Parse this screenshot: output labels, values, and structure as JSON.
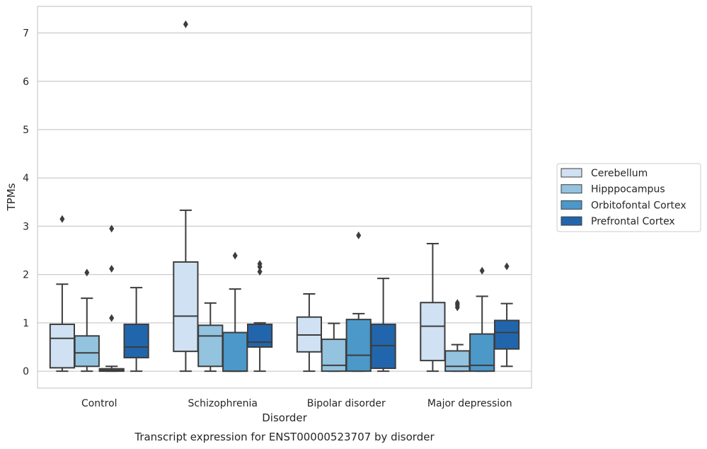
{
  "chart_data": {
    "type": "boxplot",
    "title": "Transcript expression for ENST00000523707 by disorder",
    "xlabel": "Disorder",
    "ylabel": "TPMs",
    "categories": [
      "Control",
      "Schizophrenia",
      "Bipolar disorder",
      "Major depression"
    ],
    "yticks": [
      0,
      1,
      2,
      3,
      4,
      5,
      6,
      7
    ],
    "ylim": [
      -0.35,
      7.55
    ],
    "grid": "horizontal",
    "legend_position": "right",
    "series": [
      {
        "name": "Cerebellum",
        "color": "#cfe1f2",
        "boxes": [
          {
            "whislo": 0.0,
            "q1": 0.07,
            "med": 0.68,
            "q3": 0.97,
            "whishi": 1.8,
            "fliers": [
              3.15
            ]
          },
          {
            "whislo": 0.0,
            "q1": 0.41,
            "med": 1.14,
            "q3": 2.26,
            "whishi": 3.33,
            "fliers": [
              7.18
            ]
          },
          {
            "whislo": 0.0,
            "q1": 0.4,
            "med": 0.75,
            "q3": 1.12,
            "whishi": 1.6,
            "fliers": []
          },
          {
            "whislo": 0.0,
            "q1": 0.22,
            "med": 0.93,
            "q3": 1.42,
            "whishi": 2.64,
            "fliers": []
          }
        ]
      },
      {
        "name": "Hipppocampus",
        "color": "#93c3df",
        "boxes": [
          {
            "whislo": 0.0,
            "q1": 0.1,
            "med": 0.38,
            "q3": 0.73,
            "whishi": 1.51,
            "fliers": [
              2.04
            ]
          },
          {
            "whislo": 0.0,
            "q1": 0.1,
            "med": 0.73,
            "q3": 0.95,
            "whishi": 1.41,
            "fliers": []
          },
          {
            "whislo": 0.0,
            "q1": 0.0,
            "med": 0.12,
            "q3": 0.66,
            "whishi": 0.99,
            "fliers": []
          },
          {
            "whislo": 0.0,
            "q1": 0.0,
            "med": 0.1,
            "q3": 0.42,
            "whishi": 0.55,
            "fliers": [
              1.32,
              1.37,
              1.41
            ]
          }
        ]
      },
      {
        "name": "Orbitofontal Cortex",
        "color": "#4b98c9",
        "boxes": [
          {
            "whislo": 0.0,
            "q1": 0.0,
            "med": 0.02,
            "q3": 0.05,
            "whishi": 0.1,
            "fliers": [
              1.1,
              2.12,
              2.95
            ]
          },
          {
            "whislo": 0.0,
            "q1": 0.0,
            "med": 0.0,
            "q3": 0.8,
            "whishi": 1.7,
            "fliers": [
              2.39
            ]
          },
          {
            "whislo": 0.0,
            "q1": 0.0,
            "med": 0.33,
            "q3": 1.07,
            "whishi": 1.19,
            "fliers": [
              2.81
            ]
          },
          {
            "whislo": 0.0,
            "q1": 0.0,
            "med": 0.12,
            "q3": 0.77,
            "whishi": 1.55,
            "fliers": [
              2.08
            ]
          }
        ]
      },
      {
        "name": "Prefrontal Cortex",
        "color": "#2166ac",
        "boxes": [
          {
            "whislo": 0.0,
            "q1": 0.28,
            "med": 0.5,
            "q3": 0.97,
            "whishi": 1.73,
            "fliers": []
          },
          {
            "whislo": 0.0,
            "q1": 0.5,
            "med": 0.6,
            "q3": 0.97,
            "whishi": 1.0,
            "fliers": [
              2.06,
              2.16,
              2.22
            ]
          },
          {
            "whislo": 0.0,
            "q1": 0.06,
            "med": 0.53,
            "q3": 0.97,
            "whishi": 1.92,
            "fliers": []
          },
          {
            "whislo": 0.1,
            "q1": 0.46,
            "med": 0.8,
            "q3": 1.05,
            "whishi": 1.4,
            "fliers": [
              2.17
            ]
          }
        ]
      }
    ]
  }
}
